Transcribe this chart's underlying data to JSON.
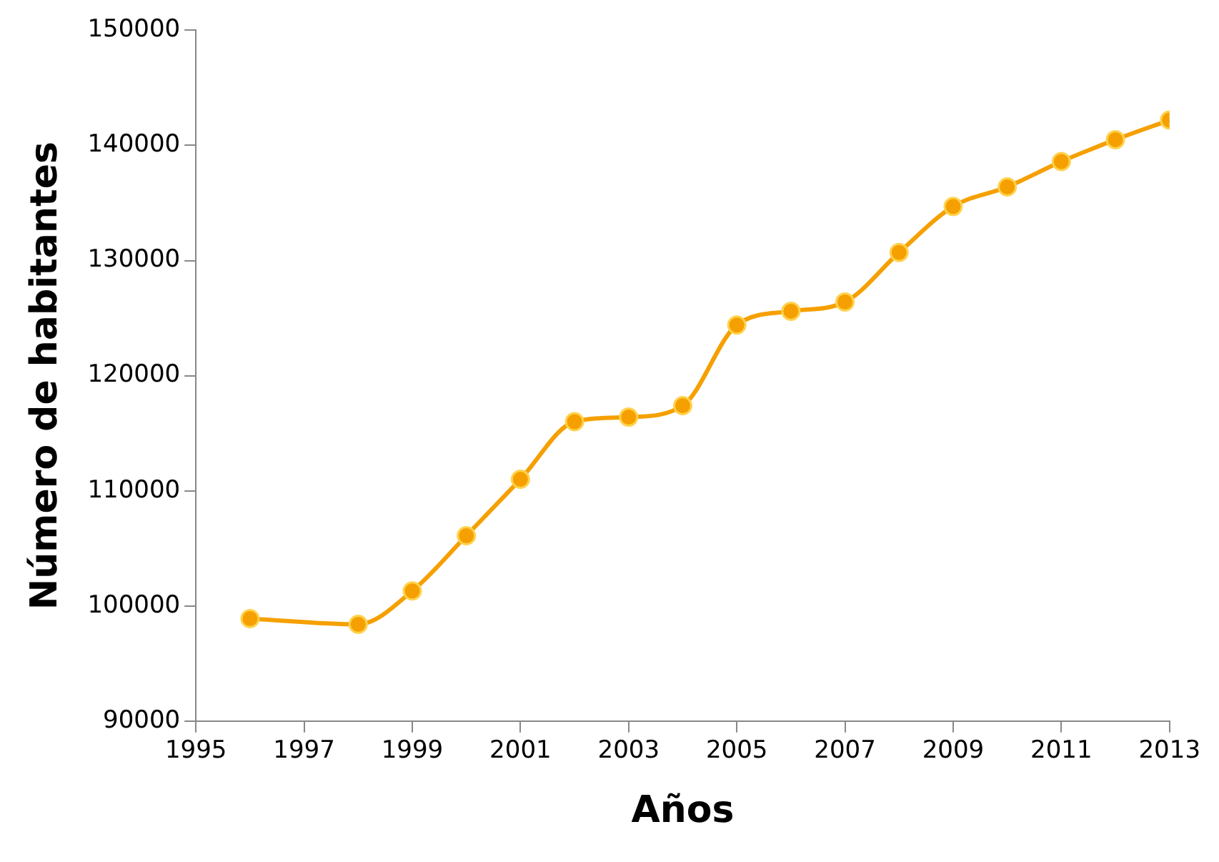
{
  "chart_data": {
    "type": "line",
    "xlabel": "Años",
    "ylabel": "Número de habitantes",
    "x": [
      1996,
      1998,
      1999,
      2000,
      2001,
      2002,
      2003,
      2004,
      2005,
      2006,
      2007,
      2008,
      2009,
      2010,
      2011,
      2012,
      2013
    ],
    "series": [
      {
        "color": "#f5a000",
        "values": [
          98900,
          98400,
          101300,
          106100,
          111000,
          116000,
          116400,
          117400,
          124400,
          125600,
          126400,
          130700,
          134700,
          136400,
          138600,
          140500,
          142200
        ]
      }
    ],
    "xlim": [
      1995,
      2013
    ],
    "xticks": [
      1995,
      1997,
      1999,
      2001,
      2003,
      2005,
      2007,
      2009,
      2011,
      2013
    ],
    "ylim": [
      90000,
      150000
    ],
    "yticks": [
      90000,
      100000,
      110000,
      120000,
      130000,
      140000,
      150000
    ],
    "grid": false,
    "legend": false,
    "marker": "circle",
    "line_style": "solid"
  }
}
